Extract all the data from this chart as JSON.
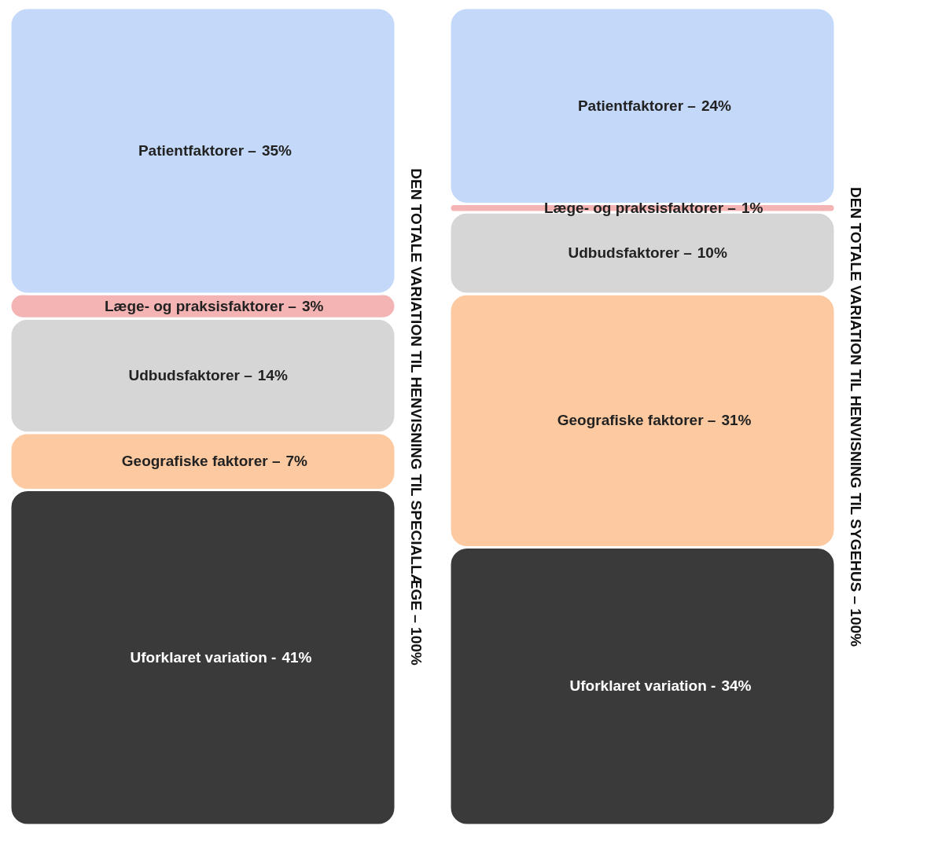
{
  "chart_data": [
    {
      "type": "bar",
      "stacked": true,
      "categories": [
        null
      ],
      "ylabel": "DEN TOTALE VARIATION TIL HENVISNING TIL SPECIALLÆGE – 100%",
      "tick_labels": false,
      "series": [
        {
          "name": "Uforklaret variation -",
          "color": "#3a3a3a",
          "values": [
            41
          ],
          "value_labels": [
            "41%"
          ]
        },
        {
          "name": "Geografiske faktorer –",
          "color": "#fcc9a0",
          "values": [
            7
          ],
          "value_labels": [
            "7%"
          ]
        },
        {
          "name": "Udbudsfaktorer –",
          "color": "#d6d6d6",
          "values": [
            14
          ],
          "value_labels": [
            "14%"
          ]
        },
        {
          "name": "Læge- og praksisfaktorer –",
          "color": "#f5b4b4",
          "values": [
            3
          ],
          "value_labels": [
            "3%"
          ]
        },
        {
          "name": "Patientfaktorer –",
          "color": "#c4d8fa",
          "values": [
            35
          ],
          "value_labels": [
            "35%"
          ]
        }
      ]
    },
    {
      "type": "bar",
      "stacked": true,
      "categories": [
        null
      ],
      "ylabel": "DEN TOTALE VARIATION TIL HENVISNING TIL SYGEHUS – 100%",
      "tick_labels": false,
      "series": [
        {
          "name": "Uforklaret variation -",
          "color": "#3a3a3a",
          "values": [
            34
          ],
          "value_labels": [
            "34%"
          ]
        },
        {
          "name": "Geografiske faktorer –",
          "color": "#fcc9a0",
          "values": [
            31
          ],
          "value_labels": [
            "31%"
          ]
        },
        {
          "name": "Udbudsfaktorer –",
          "color": "#d6d6d6",
          "values": [
            10
          ],
          "value_labels": [
            "10%"
          ]
        },
        {
          "name": "Læge- og praksisfaktorer –",
          "color": "#f5b4b4",
          "values": [
            1
          ],
          "value_labels": [
            "1%"
          ]
        },
        {
          "name": "Patientfaktorer –",
          "color": "#c4d8fa",
          "values": [
            24
          ],
          "value_labels": [
            "24%"
          ]
        }
      ]
    }
  ]
}
